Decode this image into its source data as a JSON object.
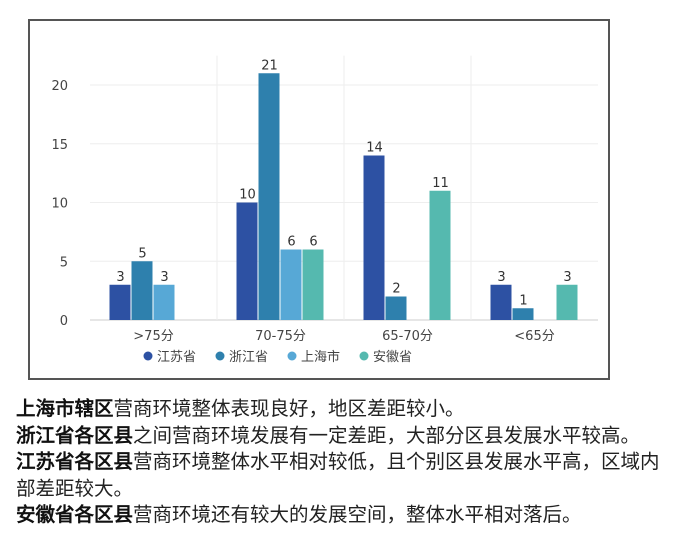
{
  "chart_data": {
    "type": "bar",
    "categories": [
      ">75分",
      "70-75分",
      "65-70分",
      "<65分"
    ],
    "series": [
      {
        "name": "江苏省",
        "color": "#2d51a3",
        "values": [
          3,
          10,
          14,
          3
        ]
      },
      {
        "name": "浙江省",
        "color": "#2e80ad",
        "values": [
          5,
          21,
          2,
          1
        ]
      },
      {
        "name": "上海市",
        "color": "#57a8d6",
        "values": [
          3,
          6,
          null,
          null
        ]
      },
      {
        "name": "安徽省",
        "color": "#55b9af",
        "values": [
          null,
          6,
          11,
          3
        ]
      }
    ],
    "yticks": [
      "0",
      "5",
      "10",
      "15",
      "20"
    ],
    "ylim": [
      0,
      22
    ],
    "grid": true,
    "legend": "bottom"
  },
  "notes": [
    {
      "bold": "上海市辖区",
      "text": "营商环境整体表现良好，地区差距较小。"
    },
    {
      "bold": "浙江省各区县",
      "text": "之间营商环境发展有一定差距，大部分区县发展水平较高。"
    },
    {
      "bold": "江苏省各区县",
      "text": "营商环境整体水平相对较低，且个别区县发展水平高，区域内部差距较大。"
    },
    {
      "bold": "安徽省各区县",
      "text": "营商环境还有较大的发展空间，整体水平相对落后。"
    }
  ]
}
